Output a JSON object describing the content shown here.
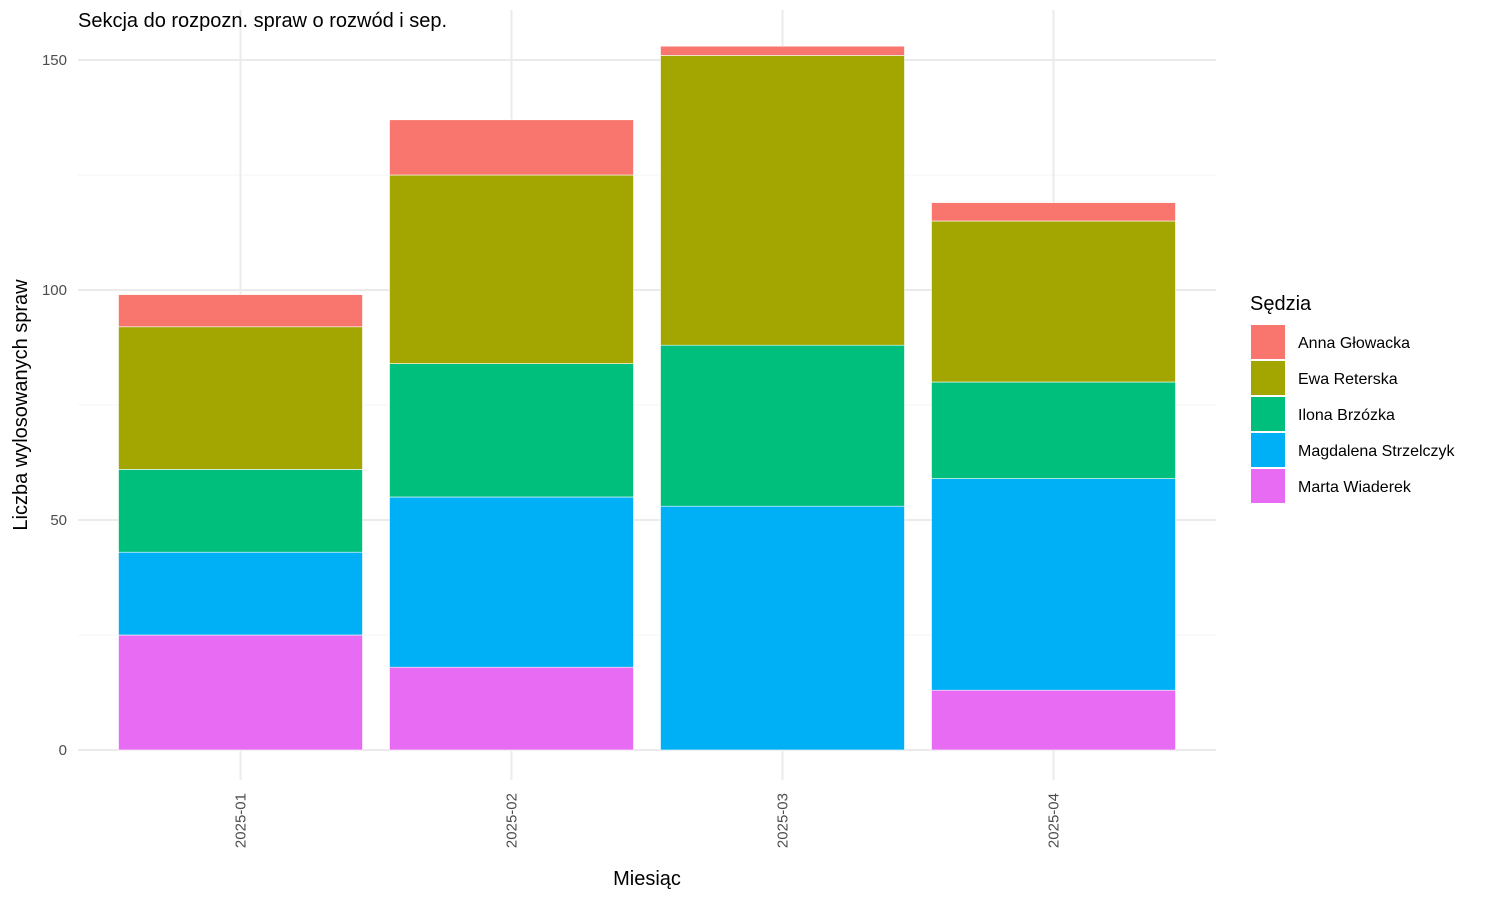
{
  "chart_data": {
    "type": "bar",
    "stacked": true,
    "title": "Sekcja do rozpozn. spraw o rozwód i sep.",
    "xlabel": "Miesiąc",
    "ylabel": "Liczba wylosowanych spraw",
    "categories": [
      "2025-01",
      "2025-02",
      "2025-03",
      "2025-04"
    ],
    "ylim": [
      0,
      155
    ],
    "yticks": [
      0,
      50,
      100,
      150
    ],
    "grid": true,
    "legend": {
      "title": "Sędzia",
      "placement": "right"
    },
    "series": [
      {
        "name": "Marta Wiaderek",
        "color": "#E76BF3",
        "values": [
          25,
          18,
          0,
          13
        ]
      },
      {
        "name": "Magdalena Strzelczyk",
        "color": "#00B0F6",
        "values": [
          18,
          37,
          53,
          46
        ]
      },
      {
        "name": "Ilona Brzózka",
        "color": "#00BF7D",
        "values": [
          18,
          29,
          35,
          21
        ]
      },
      {
        "name": "Ewa Reterska",
        "color": "#A3A500",
        "values": [
          31,
          41,
          63,
          35
        ]
      },
      {
        "name": "Anna Głowacka",
        "color": "#F8766D",
        "values": [
          7,
          12,
          2,
          4
        ]
      }
    ],
    "legend_order": [
      "Anna Głowacka",
      "Ewa Reterska",
      "Ilona Brzózka",
      "Magdalena Strzelczyk",
      "Marta Wiaderek"
    ]
  }
}
